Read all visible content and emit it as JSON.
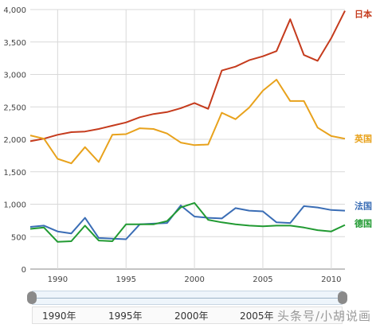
{
  "chart_data": {
    "type": "line",
    "title": "",
    "xlabel": "",
    "ylabel": "",
    "xlim": [
      1988,
      2011
    ],
    "ylim": [
      0,
      4000
    ],
    "grid": true,
    "x_ticks": [
      "1990",
      "1995",
      "2000",
      "2005",
      "2010"
    ],
    "y_ticks": [
      "0",
      "500",
      "1,000",
      "1,500",
      "2,000",
      "2,500",
      "3,000",
      "3,500",
      "4,000"
    ],
    "x": [
      1988,
      1989,
      1990,
      1991,
      1992,
      1993,
      1994,
      1995,
      1996,
      1997,
      1998,
      1999,
      2000,
      2001,
      2002,
      2003,
      2004,
      2005,
      2006,
      2007,
      2008,
      2009,
      2010,
      2011
    ],
    "series": [
      {
        "name": "日本",
        "color": "#c53b1d",
        "values": [
          1970,
          2010,
          2070,
          2110,
          2120,
          2160,
          2210,
          2260,
          2340,
          2390,
          2420,
          2480,
          2560,
          2470,
          3060,
          3120,
          3220,
          3280,
          3360,
          3850,
          3300,
          3210,
          3560,
          3980
        ]
      },
      {
        "name": "英国",
        "color": "#e8a21c",
        "values": [
          2060,
          2010,
          1700,
          1630,
          1880,
          1650,
          2070,
          2080,
          2170,
          2160,
          2090,
          1950,
          1910,
          1920,
          2410,
          2310,
          2490,
          2750,
          2920,
          2590,
          2590,
          2180,
          2050,
          2010
        ]
      },
      {
        "name": "法国",
        "color": "#3a6db5",
        "values": [
          650,
          670,
          580,
          550,
          790,
          480,
          470,
          460,
          690,
          700,
          710,
          980,
          810,
          790,
          780,
          940,
          900,
          890,
          720,
          710,
          970,
          950,
          910,
          900
        ]
      },
      {
        "name": "德国",
        "color": "#219a32",
        "values": [
          620,
          640,
          420,
          430,
          670,
          440,
          430,
          690,
          690,
          690,
          740,
          950,
          1020,
          760,
          720,
          690,
          670,
          660,
          670,
          670,
          640,
          600,
          580,
          680
        ]
      }
    ]
  },
  "navigator": {
    "labels": [
      "1990年",
      "1995年",
      "2000年",
      "2005年"
    ]
  },
  "watermark": "头条号/小胡说画"
}
